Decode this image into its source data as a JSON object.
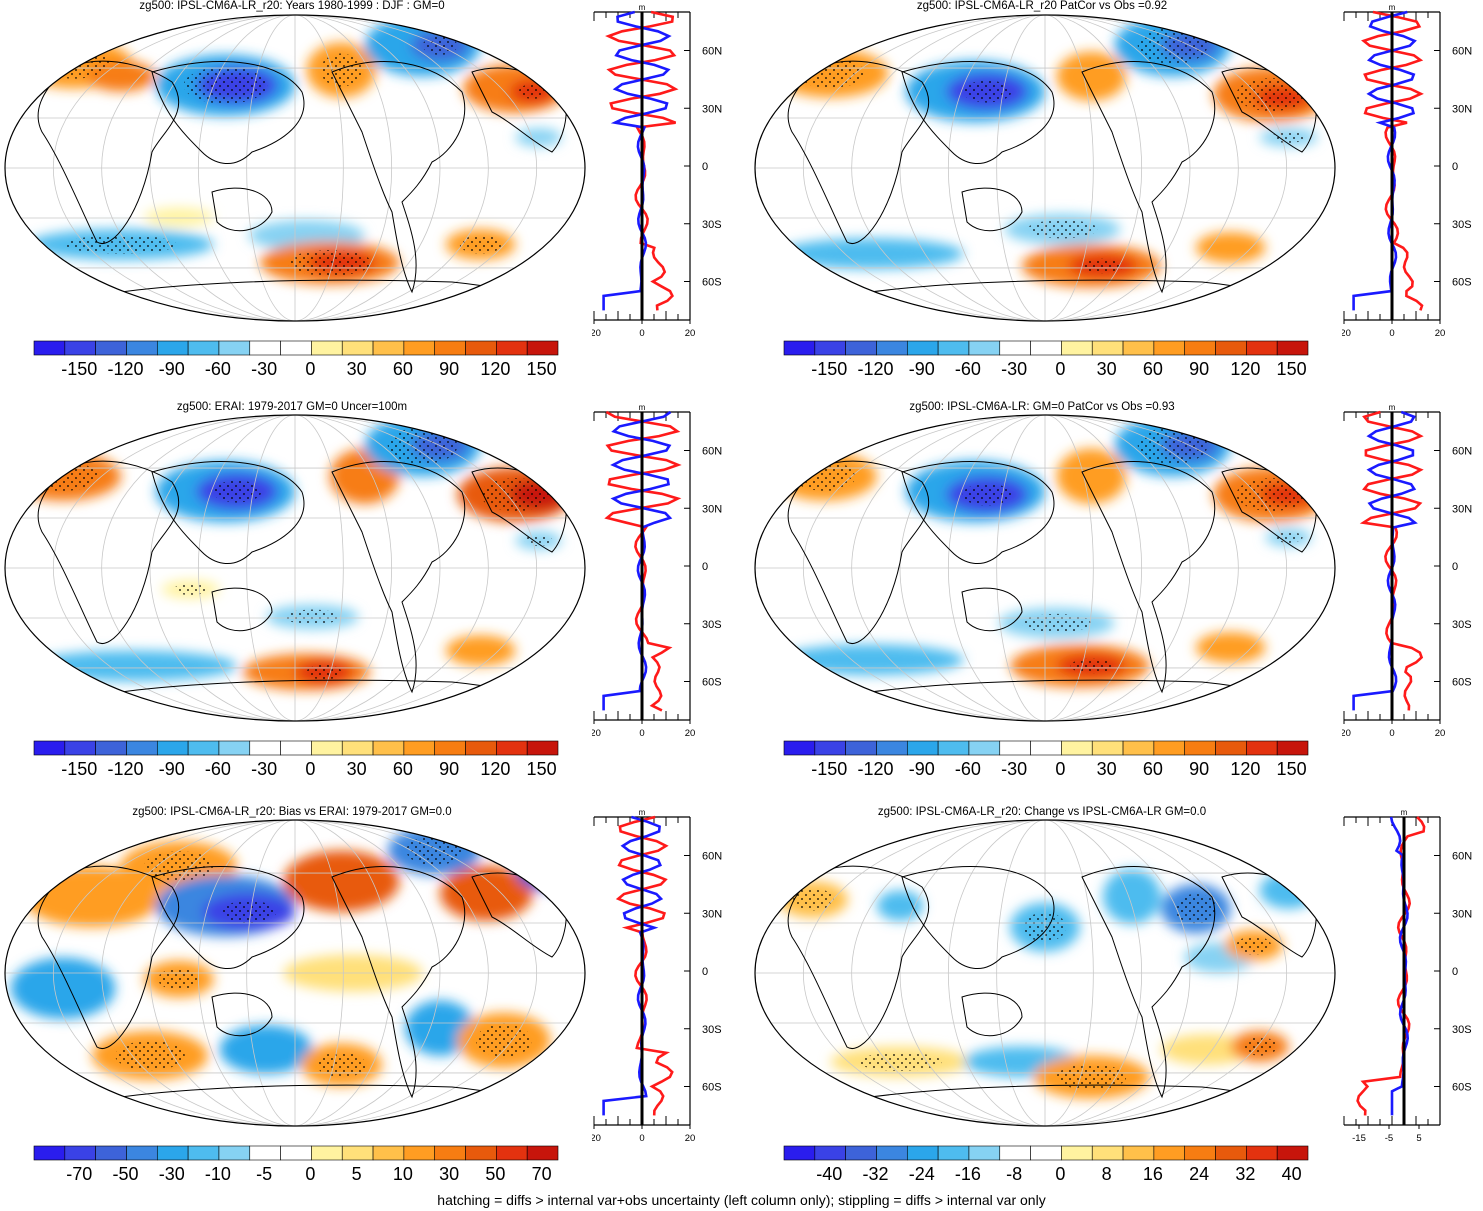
{
  "footer": "hatching = diffs > internal var+obs uncertainty (left column only); stippling = diffs > internal var only",
  "colors": {
    "scale": [
      "#2a1dee",
      "#3a42e6",
      "#3d63d9",
      "#3b86e0",
      "#2ba6ea",
      "#4ebcef",
      "#86d2f3",
      "#ffffff",
      "#ffffff",
      "#fff3a0",
      "#ffe07a",
      "#ffc04a",
      "#ff9d22",
      "#f77d12",
      "#e85a0c",
      "#e3320f",
      "#c7150b"
    ],
    "profile_red": "#ff1a1a",
    "profile_blue": "#1a1aff"
  },
  "chart_data": [
    {
      "type": "heatmap",
      "title": "zg500: IPSL-CM6A-LR_r20: Years 1980-1999 : DJF : GM=0",
      "colorbar_ticks": [
        "-150",
        "-120",
        "-90",
        "-60",
        "-30",
        "0",
        "30",
        "60",
        "90",
        "120",
        "150"
      ],
      "lat_labels": [
        "60N",
        "30N",
        "0",
        "30S",
        "60S"
      ],
      "profile": {
        "xticks": [
          "-20",
          "0",
          "20"
        ],
        "unit": "m",
        "xlim": [
          -20,
          20
        ]
      }
    },
    {
      "type": "heatmap",
      "title": "zg500: IPSL-CM6A-LR_r20 PatCor vs Obs =0.92",
      "colorbar_ticks": [
        "-150",
        "-120",
        "-90",
        "-60",
        "-30",
        "0",
        "30",
        "60",
        "90",
        "120",
        "150"
      ],
      "lat_labels": [
        "60N",
        "30N",
        "0",
        "30S",
        "60S"
      ],
      "profile": {
        "xticks": [
          "-20",
          "0",
          "20"
        ],
        "unit": "m",
        "xlim": [
          -20,
          20
        ]
      }
    },
    {
      "type": "heatmap",
      "title": "zg500: ERAI: 1979-2017 GM=0 Uncer=100m",
      "colorbar_ticks": [
        "-150",
        "-120",
        "-90",
        "-60",
        "-30",
        "0",
        "30",
        "60",
        "90",
        "120",
        "150"
      ],
      "lat_labels": [
        "60N",
        "30N",
        "0",
        "30S",
        "60S"
      ],
      "profile": {
        "xticks": [
          "-20",
          "0",
          "20"
        ],
        "unit": "m",
        "xlim": [
          -20,
          20
        ]
      }
    },
    {
      "type": "heatmap",
      "title": "zg500: IPSL-CM6A-LR: GM=0 PatCor vs Obs =0.93",
      "colorbar_ticks": [
        "-150",
        "-120",
        "-90",
        "-60",
        "-30",
        "0",
        "30",
        "60",
        "90",
        "120",
        "150"
      ],
      "lat_labels": [
        "60N",
        "30N",
        "0",
        "30S",
        "60S"
      ],
      "profile": {
        "xticks": [
          "-20",
          "0",
          "20"
        ],
        "unit": "m",
        "xlim": [
          -20,
          20
        ]
      }
    },
    {
      "type": "heatmap",
      "title": "zg500: IPSL-CM6A-LR_r20: Bias vs ERAI: 1979-2017 GM=0.0",
      "colorbar_ticks": [
        "-70",
        "-50",
        "-30",
        "-10",
        "-5",
        "0",
        "5",
        "10",
        "30",
        "50",
        "70"
      ],
      "lat_labels": [
        "60N",
        "30N",
        "0",
        "30S",
        "60S"
      ],
      "profile": {
        "xticks": [
          "-20",
          "0",
          "20"
        ],
        "unit": "m",
        "xlim": [
          -20,
          20
        ]
      }
    },
    {
      "type": "heatmap",
      "title": "zg500: IPSL-CM6A-LR_r20: Change vs IPSL-CM6A-LR GM=0.0",
      "colorbar_ticks": [
        "-40",
        "-32",
        "-24",
        "-16",
        "-8",
        "0",
        "8",
        "16",
        "24",
        "32",
        "40"
      ],
      "lat_labels": [
        "60N",
        "30N",
        "0",
        "30S",
        "60S"
      ],
      "profile": {
        "xticks": [
          "-15",
          "-5",
          "5"
        ],
        "unit": "m",
        "xlim": [
          -20,
          12
        ]
      }
    }
  ]
}
